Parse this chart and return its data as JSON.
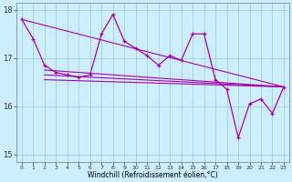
{
  "xlabel": "Windchill (Refroidissement éolien,°C)",
  "bg_color": "#cceeff",
  "line_color": "#aa00aa",
  "grid_color": "#99cccc",
  "ylim": [
    14.85,
    18.15
  ],
  "xlim": [
    -0.5,
    23.5
  ],
  "yticks": [
    15,
    16,
    17,
    18
  ],
  "xticks": [
    0,
    1,
    2,
    3,
    4,
    5,
    6,
    7,
    8,
    9,
    10,
    11,
    12,
    13,
    14,
    15,
    16,
    17,
    18,
    19,
    20,
    21,
    22,
    23
  ],
  "series_main": [
    17.8,
    17.4,
    16.85,
    16.7,
    16.65,
    16.6,
    16.65,
    17.5,
    17.9,
    17.35,
    17.2,
    17.05,
    16.85,
    17.05,
    16.95,
    17.5,
    17.5,
    16.55,
    16.35,
    15.35,
    16.05,
    16.15,
    15.85,
    16.4
  ],
  "series_trend1_x": [
    2,
    23
  ],
  "series_trend1_y": [
    16.75,
    16.4
  ],
  "series_trend2_x": [
    2,
    23
  ],
  "series_trend2_y": [
    16.65,
    16.4
  ],
  "series_trend3_x": [
    2,
    23
  ],
  "series_trend3_y": [
    16.55,
    16.4
  ],
  "series_maxline_x": [
    0,
    23
  ],
  "series_maxline_y": [
    17.8,
    16.4
  ]
}
